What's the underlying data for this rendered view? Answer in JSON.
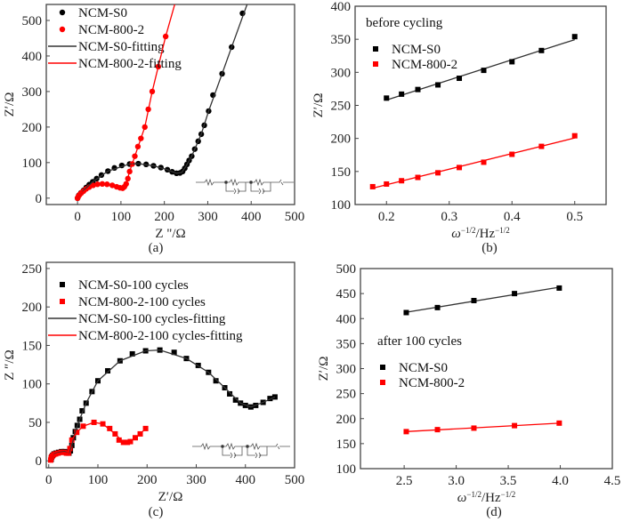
{
  "chart_data": [
    {
      "id": "a",
      "type": "scatter",
      "caption": "(a)",
      "xlabel": "Z \"/Ω",
      "ylabel": "Z′/Ω",
      "xlim": [
        -72,
        500
      ],
      "ylim": [
        -18,
        545
      ],
      "xticks": [
        "0",
        "100",
        "200",
        "300",
        "400",
        "500"
      ],
      "yticks": [
        "0",
        "100",
        "200",
        "300",
        "400",
        "500"
      ],
      "xtick_values": [
        0,
        100,
        200,
        300,
        400,
        500
      ],
      "ytick_values": [
        0,
        100,
        200,
        300,
        400,
        500
      ],
      "marker": "circle",
      "legend_placement": "top-left",
      "series": [
        {
          "name": "NCM-S0",
          "color": "#000000",
          "kind": "points",
          "points": [
            [
              0,
              0
            ],
            [
              3,
              8
            ],
            [
              8,
              15
            ],
            [
              14,
              22
            ],
            [
              20,
              30
            ],
            [
              27,
              38
            ],
            [
              35,
              46
            ],
            [
              44,
              55
            ],
            [
              55,
              65
            ],
            [
              70,
              76
            ],
            [
              85,
              85
            ],
            [
              102,
              92
            ],
            [
              120,
              96
            ],
            [
              140,
              97
            ],
            [
              158,
              95
            ],
            [
              175,
              91
            ],
            [
              192,
              86
            ],
            [
              207,
              80
            ],
            [
              218,
              74
            ],
            [
              228,
              70
            ],
            [
              236,
              71
            ],
            [
              242,
              75
            ],
            [
              247,
              84
            ],
            [
              252,
              95
            ],
            [
              257,
              106
            ],
            [
              263,
              118
            ],
            [
              270,
              138
            ],
            [
              278,
              160
            ],
            [
              285,
              180
            ],
            [
              292,
              205
            ],
            [
              302,
              245
            ],
            [
              312,
              290
            ],
            [
              333,
              350
            ],
            [
              355,
              425
            ],
            [
              380,
              520
            ]
          ]
        },
        {
          "name": "NCM-800-2",
          "color": "#ff0000",
          "kind": "points",
          "points": [
            [
              0,
              0
            ],
            [
              2,
              5
            ],
            [
              5,
              10
            ],
            [
              9,
              15
            ],
            [
              14,
              20
            ],
            [
              20,
              26
            ],
            [
              27,
              31
            ],
            [
              36,
              36
            ],
            [
              46,
              39
            ],
            [
              57,
              40
            ],
            [
              68,
              39
            ],
            [
              80,
              36
            ],
            [
              90,
              32
            ],
            [
              98,
              29
            ],
            [
              104,
              28
            ],
            [
              108,
              32
            ],
            [
              112,
              40
            ],
            [
              116,
              55
            ],
            [
              120,
              75
            ],
            [
              126,
              96
            ],
            [
              132,
              118
            ],
            [
              139,
              145
            ],
            [
              146,
              168
            ],
            [
              155,
              200
            ],
            [
              163,
              250
            ],
            [
              172,
              300
            ],
            [
              186,
              370
            ],
            [
              203,
              455
            ]
          ]
        },
        {
          "name": "NCM-S0-fitting",
          "color": "#000000",
          "kind": "line",
          "points": [
            [
              0,
              0
            ],
            [
              14,
              22
            ],
            [
              35,
              46
            ],
            [
              70,
              76
            ],
            [
              120,
              96
            ],
            [
              140,
              97
            ],
            [
              175,
              91
            ],
            [
              207,
              80
            ],
            [
              228,
              70
            ],
            [
              240,
              72
            ],
            [
              250,
              90
            ],
            [
              263,
              118
            ],
            [
              285,
              180
            ],
            [
              302,
              245
            ],
            [
              333,
              350
            ],
            [
              355,
              425
            ],
            [
              392,
              550
            ]
          ]
        },
        {
          "name": "NCM-800-2-fitting",
          "color": "#ff0000",
          "kind": "line",
          "points": [
            [
              0,
              0
            ],
            [
              9,
              15
            ],
            [
              27,
              31
            ],
            [
              57,
              40
            ],
            [
              90,
              32
            ],
            [
              104,
              28
            ],
            [
              112,
              40
            ],
            [
              120,
              75
            ],
            [
              132,
              118
            ],
            [
              155,
              200
            ],
            [
              172,
              300
            ],
            [
              203,
              455
            ],
            [
              225,
              550
            ]
          ]
        }
      ]
    },
    {
      "id": "b",
      "type": "scatter",
      "caption": "(b)",
      "xlabel": "ω",
      "xlabel_sup": "−1/2",
      "xlabel_mid": "/Hz",
      "xlabel_sup2": "−1/2",
      "ylabel": "Z′/Ω",
      "annotation": "before cycling",
      "xlim": [
        0.15,
        0.55
      ],
      "ylim": [
        100,
        400
      ],
      "xticks": [
        "0.2",
        "0.3",
        "0.4",
        "0.5"
      ],
      "yticks": [
        "100",
        "150",
        "200",
        "250",
        "300",
        "350",
        "400"
      ],
      "xtick_values": [
        0.2,
        0.3,
        0.4,
        0.5
      ],
      "ytick_values": [
        100,
        150,
        200,
        250,
        300,
        350,
        400
      ],
      "marker": "square",
      "fit": "linear",
      "legend_placement": "top-left",
      "series": [
        {
          "name": "NCM-S0",
          "color": "#000000",
          "x": [
            0.2,
            0.224,
            0.25,
            0.282,
            0.316,
            0.355,
            0.4,
            0.447,
            0.5
          ],
          "y": [
            261,
            267,
            274,
            281,
            291,
            303,
            316,
            333,
            354
          ]
        },
        {
          "name": "NCM-800-2",
          "color": "#ff0000",
          "x": [
            0.178,
            0.2,
            0.224,
            0.25,
            0.282,
            0.316,
            0.355,
            0.4,
            0.447,
            0.5
          ],
          "y": [
            127,
            131,
            136,
            141,
            148,
            156,
            164,
            176,
            188,
            204
          ]
        }
      ]
    },
    {
      "id": "c",
      "type": "scatter",
      "caption": "(c)",
      "xlabel": "Z′/Ω",
      "ylabel": "Z ″/Ω",
      "xlim": [
        -5,
        500
      ],
      "ylim": [
        -9,
        258
      ],
      "xticks": [
        "0",
        "100",
        "200",
        "300",
        "400",
        "500"
      ],
      "yticks": [
        "0",
        "50",
        "100",
        "150",
        "200",
        "250"
      ],
      "xtick_values": [
        0,
        100,
        200,
        300,
        400,
        500
      ],
      "ytick_values": [
        0,
        50,
        100,
        150,
        200,
        250
      ],
      "marker": "square",
      "legend_placement": "top-left",
      "series": [
        {
          "name": "NCM-S0-100 cycles",
          "color": "#000000",
          "kind": "points",
          "points": [
            [
              5,
              2
            ],
            [
              6,
              5
            ],
            [
              8,
              7
            ],
            [
              11,
              9
            ],
            [
              15,
              10
            ],
            [
              20,
              11
            ],
            [
              26,
              12
            ],
            [
              32,
              12
            ],
            [
              37,
              11
            ],
            [
              41,
              10
            ],
            [
              44,
              13
            ],
            [
              47,
              20
            ],
            [
              50,
              30
            ],
            [
              54,
              38
            ],
            [
              58,
              46
            ],
            [
              63,
              54
            ],
            [
              68,
              65
            ],
            [
              76,
              75
            ],
            [
              88,
              90
            ],
            [
              100,
              104
            ],
            [
              120,
              117
            ],
            [
              145,
              130
            ],
            [
              170,
              139
            ],
            [
              197,
              143
            ],
            [
              226,
              144
            ],
            [
              255,
              141
            ],
            [
              280,
              133
            ],
            [
              304,
              124
            ],
            [
              325,
              115
            ],
            [
              340,
              104
            ],
            [
              358,
              95
            ],
            [
              368,
              87
            ],
            [
              380,
              79
            ],
            [
              390,
              75
            ],
            [
              400,
              72
            ],
            [
              411,
              70
            ],
            [
              421,
              72
            ],
            [
              436,
              76
            ],
            [
              450,
              81
            ],
            [
              460,
              83
            ]
          ]
        },
        {
          "name": "NCM-800-2-100 cycles",
          "color": "#ff0000",
          "kind": "points",
          "points": [
            [
              4,
              1
            ],
            [
              5,
              4
            ],
            [
              7,
              6
            ],
            [
              10,
              8
            ],
            [
              14,
              9
            ],
            [
              19,
              10
            ],
            [
              25,
              11
            ],
            [
              31,
              11
            ],
            [
              36,
              10
            ],
            [
              40,
              10
            ],
            [
              43,
              16
            ],
            [
              47,
              27
            ],
            [
              57,
              37
            ],
            [
              70,
              45
            ],
            [
              92,
              50
            ],
            [
              110,
              48
            ],
            [
              124,
              42
            ],
            [
              135,
              35
            ],
            [
              143,
              27
            ],
            [
              152,
              24
            ],
            [
              160,
              24
            ],
            [
              166,
              25
            ],
            [
              176,
              30
            ],
            [
              186,
              35
            ],
            [
              197,
              42
            ]
          ]
        },
        {
          "name": "NCM-S0-100 cycles-fitting",
          "color": "#000000",
          "kind": "line",
          "points": [
            [
              5,
              2
            ],
            [
              11,
              9
            ],
            [
              20,
              11
            ],
            [
              32,
              12
            ],
            [
              41,
              10
            ],
            [
              47,
              20
            ],
            [
              54,
              38
            ],
            [
              63,
              54
            ],
            [
              76,
              75
            ],
            [
              100,
              104
            ],
            [
              145,
              130
            ],
            [
              197,
              143
            ],
            [
              226,
              144
            ],
            [
              280,
              133
            ],
            [
              325,
              115
            ],
            [
              358,
              95
            ],
            [
              390,
              75
            ],
            [
              411,
              70
            ],
            [
              436,
              76
            ],
            [
              460,
              83
            ]
          ]
        },
        {
          "name": "NCM-800-2-100 cycles-fitting",
          "color": "#ff0000",
          "kind": "line",
          "points": [
            [
              4,
              1
            ],
            [
              10,
              8
            ],
            [
              19,
              10
            ],
            [
              31,
              11
            ],
            [
              40,
              10
            ],
            [
              47,
              27
            ],
            [
              57,
              37
            ],
            [
              70,
              45
            ],
            [
              92,
              50
            ],
            [
              110,
              48
            ],
            [
              135,
              35
            ],
            [
              152,
              24
            ],
            [
              166,
              25
            ],
            [
              186,
              35
            ],
            [
              197,
              42
            ]
          ]
        }
      ]
    },
    {
      "id": "d",
      "type": "scatter",
      "caption": "(d)",
      "xlabel": "ω",
      "xlabel_sup": "−1/2",
      "xlabel_mid": "/Hz",
      "xlabel_sup2": "−1/2",
      "ylabel": "Z′/Ω",
      "annotation": "after 100 cycles",
      "xlim": [
        2.08,
        4.5
      ],
      "ylim": [
        100,
        500
      ],
      "xticks": [
        "2.5",
        "3.0",
        "3.5",
        "4.0",
        "4.5"
      ],
      "yticks": [
        "100",
        "150",
        "200",
        "250",
        "300",
        "350",
        "400",
        "450",
        "500"
      ],
      "xtick_values": [
        2.5,
        3.0,
        3.5,
        4.0,
        4.5
      ],
      "ytick_values": [
        100,
        150,
        200,
        250,
        300,
        350,
        400,
        450,
        500
      ],
      "marker": "square",
      "fit": "linear",
      "legend_placement": "center-left",
      "series": [
        {
          "name": "NCM-S0",
          "color": "#000000",
          "x": [
            2.52,
            2.82,
            3.17,
            3.56,
            3.99
          ],
          "y": [
            412,
            422,
            436,
            450,
            461
          ]
        },
        {
          "name": "NCM-800-2",
          "color": "#ff0000",
          "x": [
            2.52,
            2.82,
            3.17,
            3.56,
            3.99
          ],
          "y": [
            174,
            178,
            181,
            186,
            191
          ]
        }
      ]
    }
  ]
}
